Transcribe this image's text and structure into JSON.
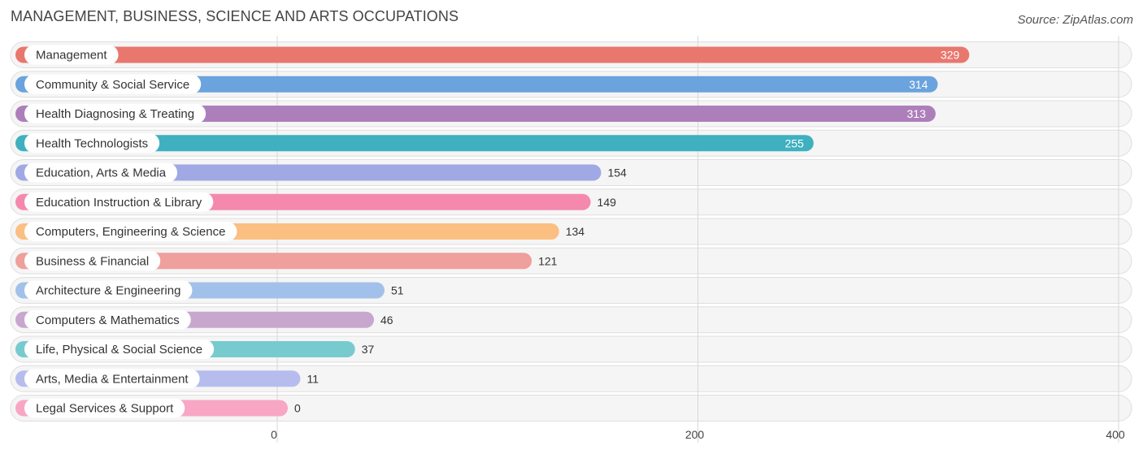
{
  "header": {
    "title": "MANAGEMENT, BUSINESS, SCIENCE AND ARTS OCCUPATIONS",
    "source": "Source: ZipAtlas.com"
  },
  "chart_data": {
    "type": "bar",
    "orientation": "horizontal",
    "title": "MANAGEMENT, BUSINESS, SCIENCE AND ARTS OCCUPATIONS",
    "xlabel": "",
    "ylabel": "",
    "xlim": [
      0,
      400
    ],
    "x_ticks": [
      0,
      200,
      400
    ],
    "grid": true,
    "categories": [
      "Management",
      "Community & Social Service",
      "Health Diagnosing & Treating",
      "Health Technologists",
      "Education, Arts & Media",
      "Education Instruction & Library",
      "Computers, Engineering & Science",
      "Business & Financial",
      "Architecture & Engineering",
      "Computers & Mathematics",
      "Life, Physical & Social Science",
      "Arts, Media & Entertainment",
      "Legal Services & Support"
    ],
    "values": [
      329,
      314,
      313,
      255,
      154,
      149,
      134,
      121,
      51,
      46,
      37,
      11,
      0
    ],
    "colors": [
      "#e8776e",
      "#6aa3dd",
      "#ad7fba",
      "#3eb0bf",
      "#a0a9e4",
      "#f589ad",
      "#fbbf82",
      "#ef9f9c",
      "#a2c1ea",
      "#c8a7cf",
      "#77cbcf",
      "#b6bdee",
      "#f8a6c4"
    ]
  }
}
